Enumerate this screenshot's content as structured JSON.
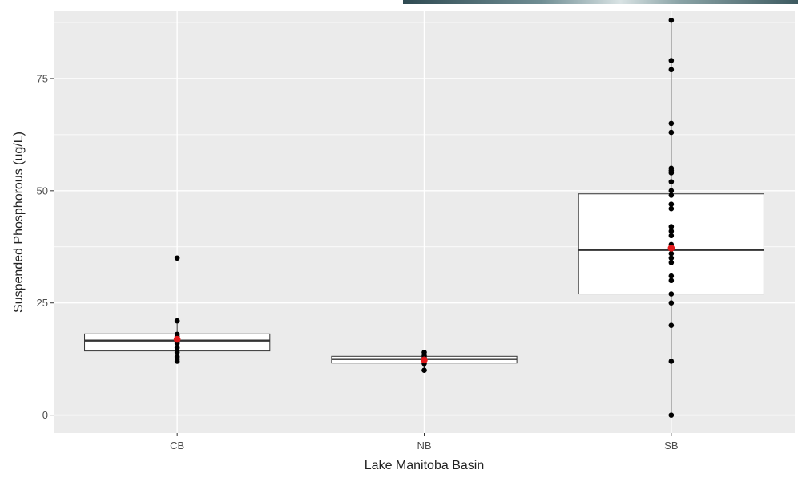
{
  "chart_data": {
    "type": "box",
    "xlabel": "Lake Manitoba Basin",
    "ylabel": "Suspended Phosphorous (ug/L)",
    "categories": [
      "CB",
      "NB",
      "SB"
    ],
    "ylim": [
      -4,
      90
    ],
    "yticks": [
      0,
      25,
      50,
      75
    ],
    "grid": true,
    "boxes": [
      {
        "category": "CB",
        "q1": 14.3,
        "median": 16.6,
        "q3": 18.1,
        "whisker_low": 12.1,
        "whisker_high": 21.0
      },
      {
        "category": "NB",
        "q1": 11.6,
        "median": 12.5,
        "q3": 13.1,
        "whisker_low": 10.0,
        "whisker_high": 14.0
      },
      {
        "category": "SB",
        "q1": 27.0,
        "median": 36.8,
        "q3": 49.3,
        "whisker_low": 0.0,
        "whisker_high": 88.0
      }
    ],
    "points": [
      {
        "category": "CB",
        "values": [
          35.0,
          21.0,
          18.0,
          17.5,
          17.0,
          16.5,
          16.0,
          15.0,
          14.0,
          13.0,
          12.5,
          12.0
        ]
      },
      {
        "category": "NB",
        "values": [
          14.0,
          13.2,
          12.8,
          12.5,
          12.0,
          11.5,
          10.0
        ]
      },
      {
        "category": "SB",
        "values": [
          88.0,
          79.0,
          77.0,
          65.0,
          63.0,
          55.0,
          54.5,
          54.0,
          52.0,
          50.0,
          49.0,
          47.0,
          46.0,
          42.0,
          41.0,
          40.0,
          38.0,
          37.0,
          36.0,
          35.0,
          34.0,
          31.0,
          30.0,
          27.0,
          25.0,
          20.0,
          12.0,
          0.0
        ]
      }
    ],
    "means": [
      {
        "category": "CB",
        "value": 16.9
      },
      {
        "category": "NB",
        "value": 12.3
      },
      {
        "category": "SB",
        "value": 37.2
      }
    ],
    "colors": {
      "panel": "#ebebeb",
      "grid_major": "#ffffff",
      "box_fill": "#ffffff",
      "box_line": "#333333",
      "point": "#000000",
      "mean": "#e41a1c"
    }
  }
}
